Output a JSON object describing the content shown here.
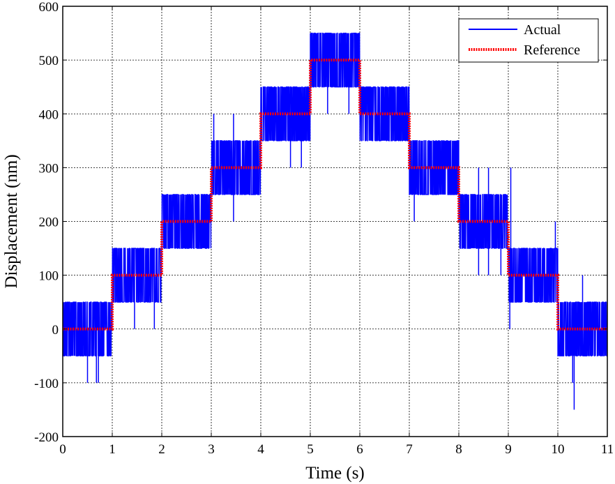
{
  "chart_data": {
    "type": "line",
    "xlabel": "Time (s)",
    "ylabel": "Displacement (nm)",
    "xlim": [
      0,
      11
    ],
    "ylim": [
      -200,
      600
    ],
    "x_ticks": [
      0,
      1,
      2,
      3,
      4,
      5,
      6,
      7,
      8,
      9,
      10,
      11
    ],
    "y_ticks": [
      -200,
      -100,
      0,
      100,
      200,
      300,
      400,
      500,
      600
    ],
    "grid": true,
    "grid_style": "dotted",
    "legend_position": "top-right",
    "series": [
      {
        "name": "Actual",
        "color": "#0000ff",
        "style": "solid",
        "description_levels": [
          {
            "x_start": 0,
            "x_end": 1,
            "band": [
              -50,
              50
            ]
          },
          {
            "x_start": 1,
            "x_end": 2,
            "band": [
              50,
              150
            ]
          },
          {
            "x_start": 2,
            "x_end": 3,
            "band": [
              150,
              250
            ]
          },
          {
            "x_start": 3,
            "x_end": 4,
            "band": [
              250,
              350
            ]
          },
          {
            "x_start": 4,
            "x_end": 5,
            "band": [
              350,
              450
            ]
          },
          {
            "x_start": 5,
            "x_end": 6,
            "band": [
              450,
              550
            ]
          },
          {
            "x_start": 6,
            "x_end": 7,
            "band": [
              350,
              450
            ]
          },
          {
            "x_start": 7,
            "x_end": 8,
            "band": [
              250,
              350
            ]
          },
          {
            "x_start": 8,
            "x_end": 9,
            "band": [
              150,
              250
            ]
          },
          {
            "x_start": 9,
            "x_end": 10,
            "band": [
              50,
              150
            ]
          },
          {
            "x_start": 10,
            "x_end": 11,
            "band": [
              -50,
              50
            ]
          }
        ],
        "spikes": [
          {
            "x": 0.5,
            "y": -100
          },
          {
            "x": 0.68,
            "y": -100
          },
          {
            "x": 0.72,
            "y": -100
          },
          {
            "x": 1.45,
            "y": 0
          },
          {
            "x": 1.85,
            "y": 0
          },
          {
            "x": 3.05,
            "y": 400
          },
          {
            "x": 3.45,
            "y": 400
          },
          {
            "x": 3.45,
            "y": 200
          },
          {
            "x": 4.6,
            "y": 300
          },
          {
            "x": 4.82,
            "y": 300
          },
          {
            "x": 5.35,
            "y": 400
          },
          {
            "x": 5.78,
            "y": 400
          },
          {
            "x": 7.1,
            "y": 200
          },
          {
            "x": 7.95,
            "y": 350
          },
          {
            "x": 8.4,
            "y": 100
          },
          {
            "x": 8.6,
            "y": 100
          },
          {
            "x": 8.85,
            "y": 100
          },
          {
            "x": 8.4,
            "y": 300
          },
          {
            "x": 8.6,
            "y": 300
          },
          {
            "x": 9.05,
            "y": 300
          },
          {
            "x": 9.03,
            "y": 0
          },
          {
            "x": 9.95,
            "y": 200
          },
          {
            "x": 10.3,
            "y": -100
          },
          {
            "x": 10.33,
            "y": -150
          },
          {
            "x": 10.5,
            "y": 100
          }
        ]
      },
      {
        "name": "Reference",
        "color": "#ff0000",
        "style": "dotted-thick",
        "x": [
          0,
          1,
          1,
          2,
          2,
          3,
          3,
          4,
          4,
          5,
          5,
          6,
          6,
          7,
          7,
          8,
          8,
          9,
          9,
          10,
          10,
          11
        ],
        "values": [
          0,
          0,
          100,
          100,
          200,
          200,
          300,
          300,
          400,
          400,
          500,
          500,
          400,
          400,
          300,
          300,
          200,
          200,
          100,
          100,
          0,
          0
        ]
      }
    ]
  }
}
